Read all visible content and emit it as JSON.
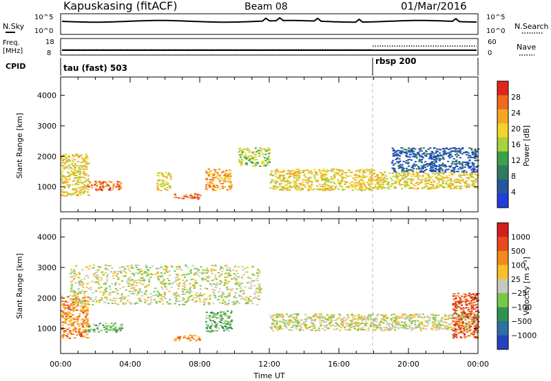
{
  "header": {
    "station": "Kapuskasing (fitACF)",
    "beam": "Beam 08",
    "date": "01/Mar/2016"
  },
  "strips": {
    "nsky_label": "N.Sky",
    "nsearch_label": "N.Search",
    "noise_ticks": [
      "10^5",
      "10^0"
    ],
    "freq_label": "Freq.",
    "freq_unit": "[MHz]",
    "freq_ticks": [
      "18",
      "8"
    ],
    "nave_label": "Nave",
    "nave_ticks": [
      "60",
      "0"
    ],
    "cpid_label": "CPID",
    "cpid_segments": [
      {
        "name": "tau (fast) 503",
        "start_hour": 0
      },
      {
        "name": "rbsp 200",
        "start_hour": 18
      }
    ]
  },
  "chart_data": [
    {
      "type": "heatmap",
      "panel": "power",
      "ylabel": "Slant Range [km]",
      "y_ticks": [
        1000,
        2000,
        3000,
        4000
      ],
      "ylim": [
        180,
        4600
      ],
      "xlim": [
        0,
        24
      ],
      "x_ticks": [
        "00:00",
        "04:00",
        "08:00",
        "12:00",
        "16:00",
        "20:00",
        "00:00"
      ],
      "colorbar": {
        "label": "Power [dB]",
        "ticks": [
          "4",
          "8",
          "12",
          "16",
          "20",
          "24",
          "28"
        ],
        "range": [
          0,
          32
        ],
        "colors": [
          "#1f3fd8",
          "#27569c",
          "#2f7a63",
          "#39a24a",
          "#a8d13a",
          "#f3d42c",
          "#f5a623",
          "#ef6a1c",
          "#e0261b"
        ]
      },
      "scatter_regions": [
        {
          "hours": [
            0.0,
            1.6
          ],
          "range_km": [
            700,
            2100
          ],
          "level": 5
        },
        {
          "hours": [
            1.5,
            3.5
          ],
          "range_km": [
            900,
            1200
          ],
          "level": 7
        },
        {
          "hours": [
            5.5,
            6.3
          ],
          "range_km": [
            900,
            1500
          ],
          "level": 5
        },
        {
          "hours": [
            6.5,
            8.0
          ],
          "range_km": [
            620,
            800
          ],
          "level": 7
        },
        {
          "hours": [
            8.3,
            9.8
          ],
          "range_km": [
            900,
            1600
          ],
          "level": 6
        },
        {
          "hours": [
            10.2,
            12.0
          ],
          "range_km": [
            1700,
            2300
          ],
          "level": 4
        },
        {
          "hours": [
            12.0,
            18.0
          ],
          "range_km": [
            900,
            1600
          ],
          "level": 5
        },
        {
          "hours": [
            18.0,
            24.0
          ],
          "range_km": [
            950,
            1500
          ],
          "level": 5
        },
        {
          "hours": [
            19.0,
            24.0
          ],
          "range_km": [
            1500,
            2300
          ],
          "level": 1
        }
      ]
    },
    {
      "type": "heatmap",
      "panel": "velocity",
      "ylabel": "Slant Range [km]",
      "y_ticks": [
        1000,
        2000,
        3000,
        4000
      ],
      "ylim": [
        180,
        4600
      ],
      "xlim": [
        0,
        24
      ],
      "x_ticks": [
        "00:00",
        "04:00",
        "08:00",
        "12:00",
        "16:00",
        "20:00",
        "00:00"
      ],
      "xlabel": "Time UT",
      "colorbar": {
        "label": "Velocity [m s⁻¹]",
        "ticks": [
          "1000",
          "500",
          "100",
          "25",
          "−25",
          "−100",
          "−500",
          "−1000"
        ],
        "colors": [
          "#2342c2",
          "#2e6fa4",
          "#2f9350",
          "#78c848",
          "#c8c8c0",
          "#f7c028",
          "#f3891c",
          "#e94a1c",
          "#d4201c"
        ]
      },
      "scatter_regions": [
        {
          "hours": [
            0.0,
            1.6
          ],
          "range_km": [
            700,
            2100
          ],
          "level": 6
        },
        {
          "hours": [
            1.5,
            3.5
          ],
          "range_km": [
            900,
            1200
          ],
          "level": 3
        },
        {
          "hours": [
            0.5,
            11.5
          ],
          "range_km": [
            1800,
            3100
          ],
          "level": 4
        },
        {
          "hours": [
            6.5,
            8.0
          ],
          "range_km": [
            620,
            800
          ],
          "level": 6
        },
        {
          "hours": [
            8.3,
            9.8
          ],
          "range_km": [
            900,
            1600
          ],
          "level": 3
        },
        {
          "hours": [
            12.0,
            24.0
          ],
          "range_km": [
            950,
            1500
          ],
          "level": 4
        },
        {
          "hours": [
            22.5,
            24.0
          ],
          "range_km": [
            700,
            2200
          ],
          "level": 7
        }
      ]
    }
  ]
}
